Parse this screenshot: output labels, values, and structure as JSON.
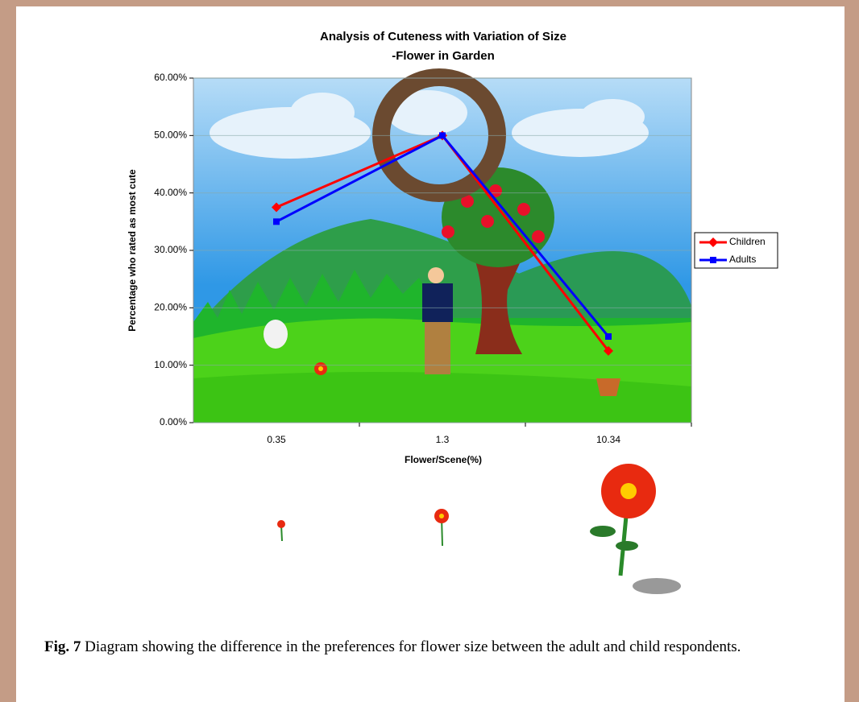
{
  "chart_data": {
    "type": "line",
    "title": "Analysis of Cuteness with Variation of Size",
    "subtitle": "-Flower in Garden",
    "x_label": "Flower/Scene(%)",
    "y_label": "Percentage who rated as most cute",
    "categories": [
      "0.35",
      "1.3",
      "10.34"
    ],
    "series": [
      {
        "name": "Children",
        "color": "#ff0000",
        "marker": "diamond",
        "values": [
          37.5,
          50,
          12.5
        ]
      },
      {
        "name": "Adults",
        "color": "#0000ff",
        "marker": "square",
        "values": [
          35,
          50,
          15
        ]
      }
    ],
    "ylim": [
      0,
      60
    ],
    "yticks": [
      {
        "value": 0,
        "label": "0.00%"
      },
      {
        "value": 10,
        "label": "10.00%"
      },
      {
        "value": 20,
        "label": "20.00%"
      },
      {
        "value": 30,
        "label": "30.00%"
      },
      {
        "value": 40,
        "label": "40.00%"
      },
      {
        "value": 50,
        "label": "50.00%"
      },
      {
        "value": 60,
        "label": "60.00%"
      }
    ],
    "grid": true,
    "legend": "right"
  },
  "caption": {
    "label": "Fig. 7",
    "text": "Diagram showing the difference in the preferences for flower size between the adult and child respondents."
  }
}
